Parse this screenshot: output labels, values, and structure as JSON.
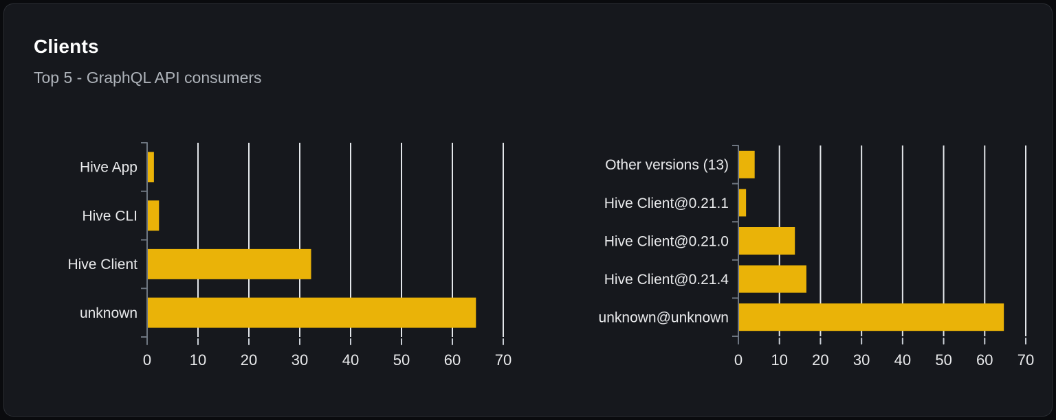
{
  "card": {
    "title": "Clients",
    "subtitle": "Top 5 - GraphQL API consumers"
  },
  "colors": {
    "page_bg": "#0a0b0e",
    "card_bg": "#16181d",
    "card_border": "#2b2e34",
    "title_text": "#ffffff",
    "subtitle_text": "#aeb3ba",
    "bar": "#eab308",
    "grid": "#e3e6ea",
    "axis": "#6e7681",
    "tick": "#c9ced5",
    "label_text": "#e9eaec"
  },
  "chart_data": [
    {
      "type": "bar",
      "orientation": "horizontal",
      "title": "",
      "xlabel": "",
      "ylabel": "",
      "categories": [
        "Hive App",
        "Hive CLI",
        "Hive Client",
        "unknown"
      ],
      "values": [
        1.2,
        2.2,
        32.1,
        64.5
      ],
      "xticks": [
        0,
        10,
        20,
        30,
        40,
        50,
        60,
        70
      ],
      "xlim": [
        0,
        70
      ],
      "grid": true,
      "legend": false
    },
    {
      "type": "bar",
      "orientation": "horizontal",
      "title": "",
      "xlabel": "",
      "ylabel": "",
      "categories": [
        "Other versions (13)",
        "Hive Client@0.21.1",
        "Hive Client@0.21.0",
        "Hive Client@0.21.4",
        "unknown@unknown"
      ],
      "values": [
        3.8,
        1.7,
        13.6,
        16.4,
        64.5
      ],
      "xticks": [
        0,
        10,
        20,
        30,
        40,
        50,
        60,
        70
      ],
      "xlim": [
        0,
        70
      ],
      "grid": true,
      "legend": false
    }
  ]
}
